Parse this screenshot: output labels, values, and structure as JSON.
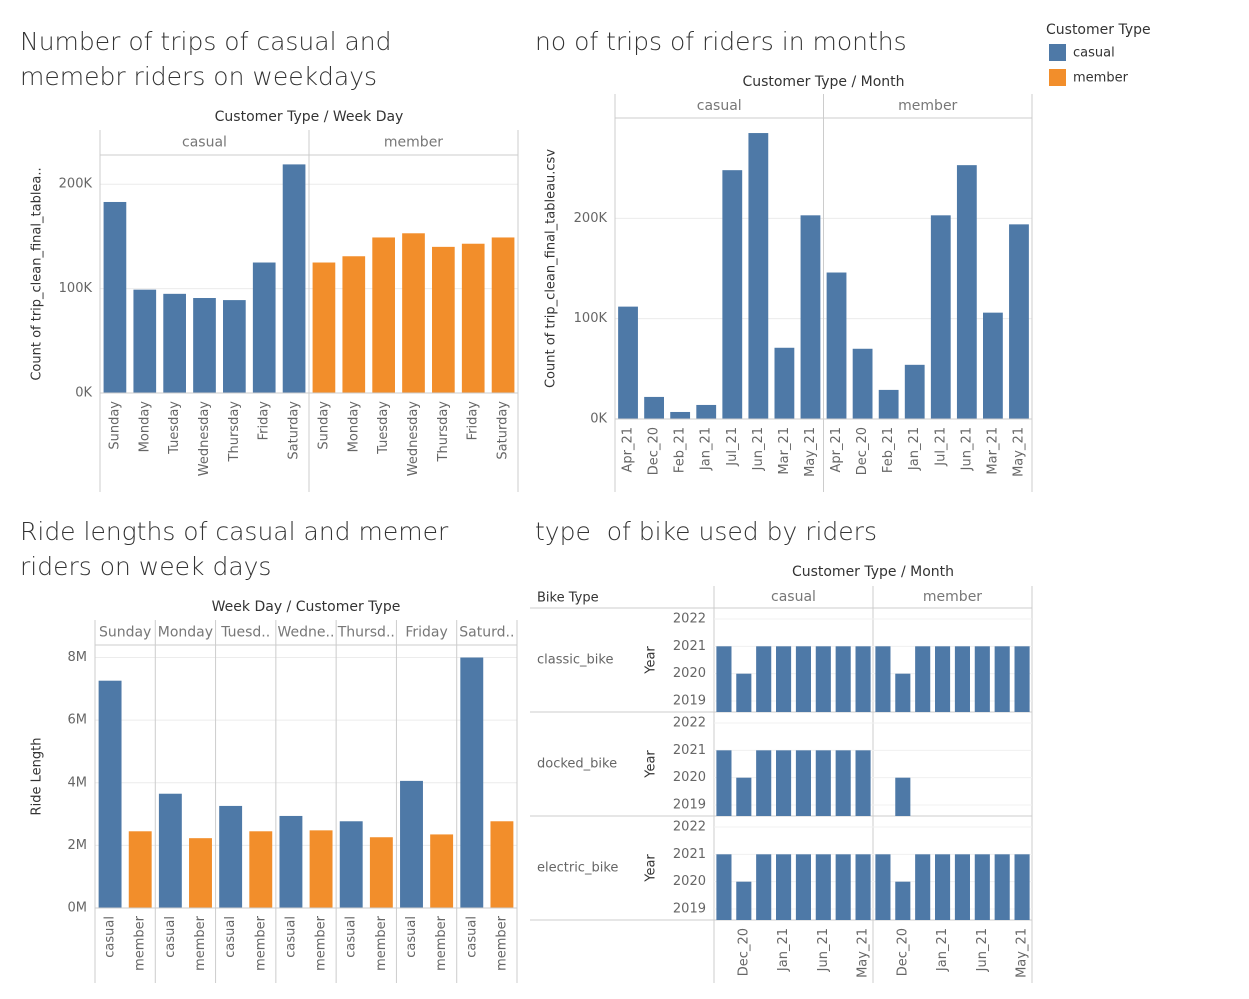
{
  "legend_title": "Customer Type",
  "chart_data": [
    {
      "type": "bar",
      "title": "Number of trips of casual and memebr riders on weekdays",
      "header": "Customer Type  /  Week Day",
      "ylabel": "Count of trip_clean_final_tablea..",
      "categories": [
        "Sunday",
        "Monday",
        "Tuesday",
        "Wednesday",
        "Thursday",
        "Friday",
        "Saturday"
      ],
      "series": [
        {
          "name": "casual",
          "color": "#4e79a7",
          "values": [
            183000,
            99000,
            95000,
            91000,
            89000,
            125000,
            219000
          ]
        },
        {
          "name": "member",
          "color": "#f28e2b",
          "values": [
            125000,
            131000,
            149000,
            153000,
            140000,
            143000,
            149000
          ]
        }
      ],
      "ylim": [
        0,
        228000
      ],
      "yticks": [
        {
          "value": 0,
          "label": "0K"
        },
        {
          "value": 100000,
          "label": "100K"
        },
        {
          "value": 200000,
          "label": "200K"
        }
      ],
      "grid": true
    },
    {
      "type": "bar",
      "title": "no of trips of riders in months",
      "header": "Customer Type  /  Month",
      "ylabel": "Count of trip_clean_final_tableau.csv",
      "categories": [
        "Apr_21",
        "Dec_20",
        "Feb_21",
        "Jan_21",
        "Jul_21",
        "Jun_21",
        "Mar_21",
        "May_21"
      ],
      "series": [
        {
          "name": "casual",
          "color": "#4e79a7",
          "values": [
            112000,
            22000,
            7000,
            14000,
            248000,
            285000,
            71000,
            203000
          ]
        },
        {
          "name": "member",
          "color": "#4e79a7",
          "values": [
            146000,
            70000,
            29000,
            54000,
            203000,
            253000,
            106000,
            194000
          ]
        }
      ],
      "ylim": [
        0,
        300000
      ],
      "yticks": [
        {
          "value": 0,
          "label": "0K"
        },
        {
          "value": 100000,
          "label": "100K"
        },
        {
          "value": 200000,
          "label": "200K"
        }
      ],
      "grid": true
    },
    {
      "type": "bar",
      "title": "Ride lengths of casual and memer riders on week days",
      "header": "Week Day  /  Customer Type",
      "ylabel": "Ride Length",
      "categories": [
        "Sunday",
        "Monday",
        "Tuesd..",
        "Wedne..",
        "Thursd..",
        "Friday",
        "Saturd.."
      ],
      "series": [
        {
          "name": "casual",
          "color": "#4e79a7",
          "values": [
            7260000,
            3650000,
            3260000,
            2940000,
            2770000,
            4060000,
            8000000
          ]
        },
        {
          "name": "member",
          "color": "#f28e2b",
          "values": [
            2450000,
            2230000,
            2450000,
            2480000,
            2260000,
            2350000,
            2770000
          ]
        }
      ],
      "ylim": [
        0,
        8400000
      ],
      "yticks": [
        {
          "value": 0,
          "label": "0M"
        },
        {
          "value": 2000000,
          "label": "2M"
        },
        {
          "value": 4000000,
          "label": "4M"
        },
        {
          "value": 6000000,
          "label": "6M"
        },
        {
          "value": 8000000,
          "label": "8M"
        }
      ],
      "grid": true
    },
    {
      "type": "bar-matrix",
      "title": "type  of bike used by riders",
      "header": "Customer Type  /  Month",
      "row_header": "Bike Type",
      "ylabel": "Year",
      "columns": [
        "casual",
        "member"
      ],
      "categories": [
        null,
        "Dec_20",
        null,
        "Jan_21",
        null,
        "Jun_21",
        null,
        "May_21"
      ],
      "color": "#4e79a7",
      "rows": [
        {
          "name": "classic_bike",
          "series": [
            {
              "name": "casual",
              "values": [
                2021,
                2020,
                2021,
                2021,
                2021,
                2021,
                2021,
                2021
              ]
            },
            {
              "name": "member",
              "values": [
                2021,
                2020,
                2021,
                2021,
                2021,
                2021,
                2021,
                2021
              ]
            }
          ]
        },
        {
          "name": "docked_bike",
          "series": [
            {
              "name": "casual",
              "values": [
                2021,
                2020,
                2021,
                2021,
                2021,
                2021,
                2021,
                2021
              ]
            },
            {
              "name": "member",
              "values": [
                null,
                2020,
                null,
                null,
                null,
                null,
                null,
                null
              ]
            }
          ]
        },
        {
          "name": "electric_bike",
          "series": [
            {
              "name": "casual",
              "values": [
                2021,
                2020,
                2021,
                2021,
                2021,
                2021,
                2021,
                2021
              ]
            },
            {
              "name": "member",
              "values": [
                2021,
                2020,
                2021,
                2021,
                2021,
                2021,
                2021,
                2021
              ]
            }
          ]
        }
      ],
      "ylim": [
        2018.6,
        2022.4
      ],
      "yticks": [
        2019,
        2020,
        2021,
        2022
      ],
      "grid": true
    }
  ]
}
